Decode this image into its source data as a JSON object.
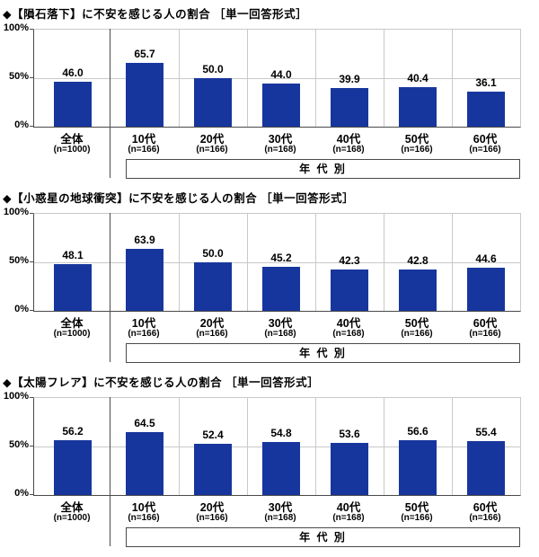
{
  "colors": {
    "bar": "#17369d",
    "grid": "#c9c9c9",
    "axis": "#4a4a4a",
    "text": "#000000"
  },
  "chart_data": [
    {
      "type": "bar",
      "title": "◆【隕石落下】に不安を感じる人の割合 ［単一回答形式］",
      "categories": [
        "全体",
        "10代",
        "20代",
        "30代",
        "40代",
        "50代",
        "60代"
      ],
      "sample_sizes": [
        "(n=1000)",
        "(n=166)",
        "(n=166)",
        "(n=168)",
        "(n=168)",
        "(n=166)",
        "(n=166)"
      ],
      "values": [
        46.0,
        65.7,
        50.0,
        44.0,
        39.9,
        40.4,
        36.1
      ],
      "value_labels": [
        "46.0",
        "65.7",
        "50.0",
        "44.0",
        "39.9",
        "40.4",
        "36.1"
      ],
      "ylim": [
        0,
        100
      ],
      "yticks": [
        "100%",
        "50%",
        "0%"
      ],
      "grid": "horizontal line at 50%",
      "group_label": "年 代 別"
    },
    {
      "type": "bar",
      "title": "◆【小惑星の地球衝突】に不安を感じる人の割合 ［単一回答形式］",
      "categories": [
        "全体",
        "10代",
        "20代",
        "30代",
        "40代",
        "50代",
        "60代"
      ],
      "sample_sizes": [
        "(n=1000)",
        "(n=166)",
        "(n=166)",
        "(n=168)",
        "(n=168)",
        "(n=166)",
        "(n=166)"
      ],
      "values": [
        48.1,
        63.9,
        50.0,
        45.2,
        42.3,
        42.8,
        44.6
      ],
      "value_labels": [
        "48.1",
        "63.9",
        "50.0",
        "45.2",
        "42.3",
        "42.8",
        "44.6"
      ],
      "ylim": [
        0,
        100
      ],
      "yticks": [
        "100%",
        "50%",
        "0%"
      ],
      "grid": "horizontal line at 50%",
      "group_label": "年 代 別"
    },
    {
      "type": "bar",
      "title": "◆【太陽フレア】に不安を感じる人の割合 ［単一回答形式］",
      "categories": [
        "全体",
        "10代",
        "20代",
        "30代",
        "40代",
        "50代",
        "60代"
      ],
      "sample_sizes": [
        "(n=1000)",
        "(n=166)",
        "(n=166)",
        "(n=168)",
        "(n=168)",
        "(n=166)",
        "(n=166)"
      ],
      "values": [
        56.2,
        64.5,
        52.4,
        54.8,
        53.6,
        56.6,
        55.4
      ],
      "value_labels": [
        "56.2",
        "64.5",
        "52.4",
        "54.8",
        "53.6",
        "56.6",
        "55.4"
      ],
      "ylim": [
        0,
        100
      ],
      "yticks": [
        "100%",
        "50%",
        "0%"
      ],
      "grid": "horizontal line at 50%",
      "group_label": "年 代 別"
    }
  ]
}
